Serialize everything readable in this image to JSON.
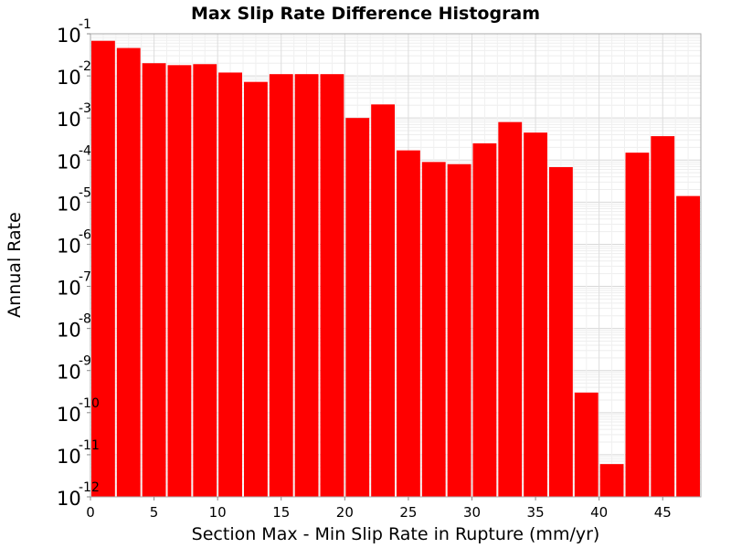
{
  "chart_data": {
    "type": "bar",
    "title": "Max Slip Rate Difference Histogram",
    "xlabel": "Section Max - Min Slip Rate in Rupture (mm/yr)",
    "ylabel": "Annual Rate",
    "xlim": [
      0,
      48
    ],
    "ylim": [
      1e-12,
      0.1
    ],
    "yscale": "log",
    "grid": true,
    "bar_color": "#ff0000",
    "bin_width": 2,
    "x_ticks": [
      "0",
      "5",
      "10",
      "15",
      "20",
      "25",
      "30",
      "35",
      "40",
      "45"
    ],
    "y_ticks": [
      {
        "base": "10",
        "exp": "-1"
      },
      {
        "base": "10",
        "exp": "-2"
      },
      {
        "base": "10",
        "exp": "-3"
      },
      {
        "base": "10",
        "exp": "-4"
      },
      {
        "base": "10",
        "exp": "-5"
      },
      {
        "base": "10",
        "exp": "-6"
      },
      {
        "base": "10",
        "exp": "-7"
      },
      {
        "base": "10",
        "exp": "-8"
      },
      {
        "base": "10",
        "exp": "-9"
      },
      {
        "base": "10",
        "exp": "-10"
      },
      {
        "base": "10",
        "exp": "-11"
      },
      {
        "base": "10",
        "exp": "-12"
      }
    ],
    "x": [
      1,
      3,
      5,
      7,
      9,
      11,
      13,
      15,
      17,
      19,
      21,
      23,
      25,
      27,
      29,
      31,
      33,
      35,
      37,
      39,
      41,
      43,
      45,
      47
    ],
    "values": [
      0.068,
      0.046,
      0.02,
      0.018,
      0.019,
      0.012,
      0.0072,
      0.011,
      0.011,
      0.011,
      0.001,
      0.0021,
      0.00017,
      9e-05,
      8e-05,
      0.00025,
      0.0008,
      0.00045,
      6.8e-05,
      3e-10,
      6e-12,
      0.00015,
      0.00037,
      1.4e-05
    ]
  }
}
